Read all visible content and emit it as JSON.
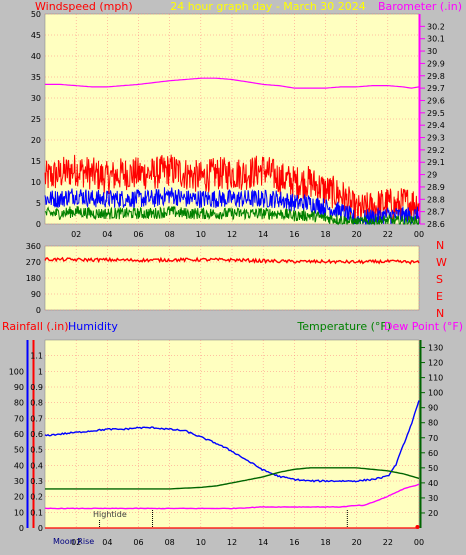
{
  "header": {
    "windspeed_label": "Windspeed (mph)",
    "title": "24 hour graph day - March 30 2024",
    "barometer_label": "Barometer (.in)",
    "rainfall_label": "Rainfall (.in)",
    "humidity_label": "Humidity",
    "temperature_label": "Temperature (°F)",
    "dewpoint_label": "Dew Point (°F)"
  },
  "direction_letters": [
    "N",
    "W",
    "S",
    "E",
    "N"
  ],
  "annotations": {
    "moon_rise": "Moon Rise",
    "high_tide": "Hightide"
  },
  "colors": {
    "plot_bg": "#ffffc0",
    "frame": "#c0c0c0",
    "grid": "#ff8080",
    "wind_max": "#ff0000",
    "wind_avg": "#0000ff",
    "wind_min": "#008000",
    "barometer": "#ff00ff",
    "wind_dir": "#ff0000",
    "rain": "#ff0000",
    "humidity": "#0000ff",
    "temperature": "#006400",
    "dewpoint": "#ff00ff",
    "title": "#ffff00"
  },
  "chart_data": [
    {
      "id": "wind",
      "type": "line",
      "xlabel": "",
      "xticks": [
        "02",
        "04",
        "06",
        "08",
        "10",
        "12",
        "14",
        "16",
        "18",
        "20",
        "22",
        "00"
      ],
      "xlim": [
        0,
        24
      ],
      "ylim": [
        0,
        50
      ],
      "yticks": [
        0,
        5,
        10,
        15,
        20,
        25,
        30,
        35,
        40,
        45,
        50
      ],
      "y2lim": [
        28.6,
        30.3
      ],
      "y2ticks": [
        "28.6",
        "28.7",
        "28.8",
        "28.9",
        "29",
        "29.1",
        "29.2",
        "29.3",
        "29.4",
        "29.5",
        "29.6",
        "29.7",
        "29.8",
        "29.9",
        "30",
        "30.1",
        "30.2"
      ],
      "grid": true,
      "series": [
        {
          "key": "gust",
          "x": [
            0,
            1,
            2,
            3,
            4,
            5,
            6,
            7,
            8,
            9,
            10,
            11,
            12,
            13,
            14,
            15,
            16,
            17,
            18,
            19,
            20,
            21,
            22,
            22.5,
            23,
            24
          ],
          "y": [
            11,
            12,
            13,
            12,
            11,
            12,
            12,
            12,
            13,
            12,
            11,
            12,
            12,
            12,
            13,
            11,
            10,
            10,
            8,
            7,
            3,
            4,
            5,
            4,
            5,
            5
          ],
          "noise": 4
        },
        {
          "key": "avg",
          "x": [
            0,
            1,
            2,
            3,
            4,
            5,
            6,
            7,
            8,
            9,
            10,
            11,
            12,
            13,
            14,
            15,
            16,
            17,
            18,
            19,
            20,
            21,
            22,
            22.5,
            23,
            24
          ],
          "y": [
            6,
            6,
            7,
            6,
            6,
            6,
            6,
            6,
            7,
            6,
            6,
            6,
            6,
            6,
            6,
            6,
            5,
            5,
            4,
            3,
            1,
            1.5,
            2,
            2,
            2,
            2
          ],
          "noise": 2.2
        },
        {
          "key": "min",
          "x": [
            0,
            1,
            2,
            3,
            4,
            5,
            6,
            7,
            8,
            9,
            10,
            11,
            12,
            13,
            14,
            15,
            16,
            17,
            18,
            19,
            20,
            21,
            22,
            22.5,
            23,
            24
          ],
          "y": [
            2.5,
            2.5,
            3,
            2.5,
            2.5,
            2.5,
            2.5,
            2.5,
            3,
            2.5,
            2.5,
            2.5,
            2.5,
            2.5,
            2.5,
            2.5,
            2,
            2,
            1.5,
            1,
            0.3,
            0.5,
            0.8,
            0.6,
            0.6,
            0.6
          ],
          "noise": 1.4
        },
        {
          "key": "baro",
          "axis": "y2",
          "x": [
            0,
            1,
            2,
            3,
            4,
            6,
            8,
            9,
            10,
            11,
            12,
            13,
            14,
            15,
            16,
            17,
            18,
            19,
            20,
            21,
            22,
            23,
            23.5,
            24
          ],
          "y": [
            29.73,
            29.73,
            29.72,
            29.71,
            29.71,
            29.73,
            29.76,
            29.77,
            29.78,
            29.78,
            29.77,
            29.75,
            29.73,
            29.72,
            29.7,
            29.7,
            29.7,
            29.71,
            29.71,
            29.72,
            29.72,
            29.71,
            29.7,
            29.71
          ]
        }
      ]
    },
    {
      "id": "direction",
      "type": "line",
      "xlim": [
        0,
        24
      ],
      "ylim": [
        0,
        360
      ],
      "yticks": [
        0,
        90,
        180,
        270,
        360
      ],
      "grid": true,
      "series": [
        {
          "key": "dir",
          "x": [
            0,
            2,
            4,
            6,
            8,
            10,
            12,
            14,
            16,
            18,
            20,
            22,
            24
          ],
          "y": [
            285,
            283,
            282,
            280,
            282,
            283,
            282,
            276,
            273,
            272,
            270,
            273,
            268
          ],
          "noise": 9
        }
      ]
    },
    {
      "id": "climate",
      "type": "line",
      "xticks": [
        "02",
        "04",
        "06",
        "08",
        "10",
        "12",
        "14",
        "16",
        "18",
        "20",
        "22",
        "00"
      ],
      "xlim": [
        0,
        24
      ],
      "ylim": [
        0,
        1.2
      ],
      "yticks": [
        0,
        0.1,
        0.2,
        0.3,
        0.4,
        0.5,
        0.6,
        0.7,
        0.8,
        0.9,
        1,
        1.1
      ],
      "y_hum_ticks": [
        0,
        10,
        20,
        30,
        40,
        50,
        60,
        70,
        80,
        90,
        100
      ],
      "y2lim": [
        10,
        135
      ],
      "y2ticks": [
        20,
        30,
        40,
        50,
        60,
        70,
        80,
        90,
        100,
        110,
        120,
        130
      ],
      "grid": true,
      "series": [
        {
          "key": "rain",
          "x": [
            0,
            24
          ],
          "y": [
            0,
            0
          ]
        },
        {
          "key": "humidity",
          "axis": "hum",
          "x": [
            0,
            1,
            2,
            3,
            4,
            5,
            6,
            7,
            8,
            9,
            10,
            11,
            12,
            13,
            14,
            15,
            16,
            17,
            18,
            19,
            20,
            21,
            22,
            22.5,
            23,
            23.5,
            24
          ],
          "y": [
            59,
            60,
            61,
            62,
            63,
            63,
            64,
            64,
            63,
            62,
            58,
            54,
            49,
            43,
            37,
            33,
            31,
            30,
            30,
            30,
            30,
            31,
            33,
            40,
            53,
            66,
            81
          ],
          "noise": 0.5
        },
        {
          "key": "temp",
          "axis": "y2",
          "x": [
            0,
            1,
            2,
            3,
            4,
            5,
            6,
            7,
            8,
            9,
            10,
            11,
            12,
            13,
            14,
            15,
            16,
            17,
            18,
            19,
            20,
            21,
            22,
            23,
            24
          ],
          "y": [
            36,
            36,
            36,
            36,
            36,
            36,
            36,
            36,
            36,
            36.5,
            37,
            38,
            40,
            42,
            44,
            47,
            49,
            50,
            50,
            50,
            50,
            49,
            48,
            46,
            43
          ]
        },
        {
          "key": "dew",
          "axis": "y2",
          "x": [
            0,
            2,
            4,
            6,
            8,
            10,
            12,
            14,
            16,
            18,
            19,
            20,
            20.5,
            21,
            22,
            23,
            24
          ],
          "y": [
            23,
            23,
            23,
            23,
            23,
            23,
            23,
            24,
            24,
            24,
            24,
            25,
            25,
            27,
            31,
            36,
            39
          ],
          "noise": 0.2
        }
      ]
    }
  ]
}
